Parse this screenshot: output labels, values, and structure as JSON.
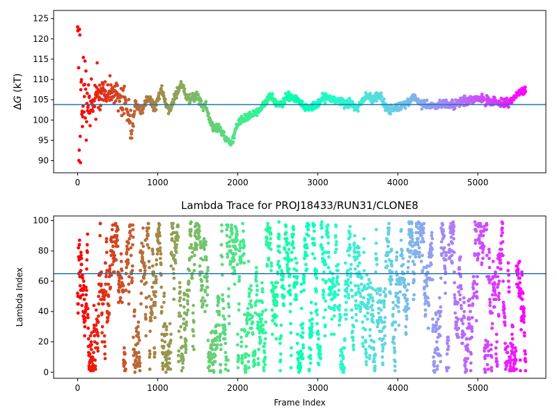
{
  "chart_data": [
    {
      "type": "scatter",
      "title": "",
      "xlabel": "",
      "ylabel": "ΔG (kT)",
      "ylabel_italic_part": "G",
      "xlim": [
        -300,
        5850
      ],
      "ylim": [
        87,
        127
      ],
      "xticks": [
        0,
        1000,
        2000,
        3000,
        4000,
        5000
      ],
      "yticks": [
        90,
        95,
        100,
        105,
        110,
        115,
        120,
        125
      ],
      "hline": 103.8,
      "hline_color": "#1f77b4",
      "colormap": "rainbow",
      "grid": false,
      "n_frames": 5600,
      "trend": [
        [
          0,
          104
        ],
        [
          60,
          107
        ],
        [
          120,
          105
        ],
        [
          180,
          103
        ],
        [
          240,
          106
        ],
        [
          300,
          107
        ],
        [
          380,
          106
        ],
        [
          450,
          107
        ],
        [
          520,
          105
        ],
        [
          600,
          104
        ],
        [
          680,
          97
        ],
        [
          720,
          104
        ],
        [
          800,
          102
        ],
        [
          880,
          106
        ],
        [
          950,
          103
        ],
        [
          1000,
          105
        ],
        [
          1050,
          108
        ],
        [
          1100,
          104
        ],
        [
          1150,
          102
        ],
        [
          1200,
          105
        ],
        [
          1250,
          107
        ],
        [
          1300,
          109
        ],
        [
          1350,
          106
        ],
        [
          1400,
          105
        ],
        [
          1500,
          106
        ],
        [
          1560,
          103
        ],
        [
          1600,
          104
        ],
        [
          1650,
          100
        ],
        [
          1700,
          98
        ],
        [
          1780,
          98
        ],
        [
          1850,
          95
        ],
        [
          1920,
          94.2
        ],
        [
          2000,
          99
        ],
        [
          2100,
          100.5
        ],
        [
          2200,
          101.5
        ],
        [
          2300,
          103
        ],
        [
          2400,
          106
        ],
        [
          2480,
          104
        ],
        [
          2550,
          104
        ],
        [
          2650,
          106
        ],
        [
          2750,
          105
        ],
        [
          2850,
          103
        ],
        [
          2950,
          103
        ],
        [
          3000,
          104
        ],
        [
          3100,
          106
        ],
        [
          3200,
          105
        ],
        [
          3300,
          104.5
        ],
        [
          3400,
          104
        ],
        [
          3500,
          103
        ],
        [
          3600,
          106
        ],
        [
          3700,
          105
        ],
        [
          3750,
          106.5
        ],
        [
          3800,
          105
        ],
        [
          3850,
          103
        ],
        [
          3900,
          102.5
        ],
        [
          4000,
          103
        ],
        [
          4100,
          104
        ],
        [
          4200,
          105.5
        ],
        [
          4300,
          104
        ],
        [
          4400,
          103.5
        ],
        [
          4500,
          103.5
        ],
        [
          4600,
          104
        ],
        [
          4700,
          103.5
        ],
        [
          4800,
          104.5
        ],
        [
          4900,
          104.8
        ],
        [
          5000,
          105.5
        ],
        [
          5100,
          104.8
        ],
        [
          5200,
          104.5
        ],
        [
          5300,
          104
        ],
        [
          5400,
          104.5
        ],
        [
          5500,
          106.5
        ],
        [
          5600,
          107.5
        ]
      ]
    },
    {
      "type": "scatter",
      "title": "Lambda Trace for PROJ18433/RUN31/CLONE8",
      "xlabel": "Frame Index",
      "ylabel": "Lambda Index",
      "xlim": [
        -300,
        5850
      ],
      "ylim": [
        -4,
        103
      ],
      "xticks": [
        0,
        1000,
        2000,
        3000,
        4000,
        5000
      ],
      "yticks": [
        0,
        20,
        40,
        60,
        80,
        100
      ],
      "hline": 65,
      "hline_color": "#1f77b4",
      "colormap": "rainbow",
      "grid": false,
      "n_frames": 5600,
      "lambda_min": 0,
      "lambda_max": 99
    }
  ]
}
